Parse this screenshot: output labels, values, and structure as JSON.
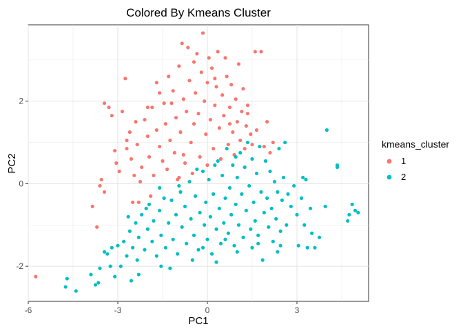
{
  "chart_data": {
    "type": "scatter",
    "title": "Colored By Kmeans Cluster",
    "xlabel": "PC1",
    "ylabel": "PC2",
    "xlim": [
      -6,
      5.4
    ],
    "ylim": [
      -2.85,
      3.85
    ],
    "xticks": [
      -6,
      -3,
      0,
      3
    ],
    "yticks": [
      -2,
      0,
      2
    ],
    "grid": true,
    "legend": {
      "title": "kmeans_cluster",
      "placement": "right",
      "entries": [
        {
          "label": "1",
          "color": "#F8766D"
        },
        {
          "label": "2",
          "color": "#00BFC4"
        }
      ]
    },
    "series": [
      {
        "name": "1",
        "color": "#F8766D",
        "points": [
          [
            -5.75,
            -2.25
          ],
          [
            -3.85,
            -0.55
          ],
          [
            -3.7,
            -1.05
          ],
          [
            -3.6,
            -0.05
          ],
          [
            -3.55,
            0.1
          ],
          [
            -3.45,
            -0.2
          ],
          [
            -3.45,
            1.95
          ],
          [
            -3.3,
            1.85
          ],
          [
            -3.2,
            1.65
          ],
          [
            -3.1,
            0.8
          ],
          [
            -3.05,
            0.5
          ],
          [
            -2.95,
            0.3
          ],
          [
            -2.85,
            1.75
          ],
          [
            -2.75,
            2.55
          ],
          [
            -2.7,
            0.85
          ],
          [
            -2.6,
            1.25
          ],
          [
            -2.55,
            0.6
          ],
          [
            -2.45,
            0.2
          ],
          [
            -2.4,
            1.5
          ],
          [
            -2.35,
            0.95
          ],
          [
            -2.3,
            -0.45
          ],
          [
            -2.2,
            0.4
          ],
          [
            -2.1,
            1.55
          ],
          [
            -2.0,
            1.15
          ],
          [
            -1.95,
            0.65
          ],
          [
            -1.85,
            1.85
          ],
          [
            -1.8,
            0.2
          ],
          [
            -1.7,
            1.3
          ],
          [
            -1.6,
            2.2
          ],
          [
            -1.6,
            0.9
          ],
          [
            -1.5,
            0.55
          ],
          [
            -1.45,
            1.95
          ],
          [
            -1.4,
            1.45
          ],
          [
            -1.35,
            0.35
          ],
          [
            -1.3,
            2.6
          ],
          [
            -1.25,
            1.05
          ],
          [
            -1.15,
            2.25
          ],
          [
            -1.1,
            0.75
          ],
          [
            -1.05,
            1.6
          ],
          [
            -0.95,
            0.15
          ],
          [
            -0.95,
            2.85
          ],
          [
            -0.9,
            1.25
          ],
          [
            -0.85,
            3.4
          ],
          [
            -0.8,
            2.05
          ],
          [
            -0.75,
            0.5
          ],
          [
            -0.7,
            1.75
          ],
          [
            -0.65,
            3.3
          ],
          [
            -0.6,
            2.5
          ],
          [
            -0.55,
            1.0
          ],
          [
            -0.5,
            0.25
          ],
          [
            -0.45,
            1.45
          ],
          [
            -0.4,
            2.2
          ],
          [
            -0.35,
            3.15
          ],
          [
            -0.3,
            1.7
          ],
          [
            -0.25,
            0.65
          ],
          [
            -0.2,
            2.7
          ],
          [
            -0.15,
            3.65
          ],
          [
            -0.1,
            2.0
          ],
          [
            -0.05,
            1.2
          ],
          [
            0.0,
            2.45
          ],
          [
            0.0,
            0.45
          ],
          [
            0.05,
            3.05
          ],
          [
            0.1,
            1.55
          ],
          [
            0.15,
            2.8
          ],
          [
            0.2,
            0.85
          ],
          [
            0.25,
            1.9
          ],
          [
            0.3,
            2.35
          ],
          [
            0.35,
            3.2
          ],
          [
            0.4,
            1.35
          ],
          [
            0.45,
            0.6
          ],
          [
            0.5,
            2.15
          ],
          [
            0.55,
            1.65
          ],
          [
            0.6,
            3.05
          ],
          [
            0.65,
            2.6
          ],
          [
            0.7,
            0.95
          ],
          [
            0.75,
            1.85
          ],
          [
            0.8,
            2.4
          ],
          [
            0.85,
            1.25
          ],
          [
            0.9,
            0.7
          ],
          [
            0.95,
            2.05
          ],
          [
            1.0,
            1.5
          ],
          [
            1.05,
            2.9
          ],
          [
            1.1,
            1.05
          ],
          [
            1.15,
            1.75
          ],
          [
            1.2,
            2.3
          ],
          [
            1.25,
            0.85
          ],
          [
            1.3,
            1.4
          ],
          [
            1.35,
            1.9
          ],
          [
            1.45,
            1.2
          ],
          [
            1.5,
            0.95
          ],
          [
            1.6,
            3.2
          ],
          [
            1.65,
            1.3
          ],
          [
            1.8,
            3.2
          ],
          [
            1.9,
            0.9
          ],
          [
            2.0,
            1.5
          ],
          [
            2.1,
            0.75
          ],
          [
            2.2,
            1.0
          ],
          [
            -1.0,
            0.1
          ],
          [
            -2.5,
            -0.45
          ],
          [
            -1.9,
            -0.3
          ],
          [
            -2.25,
            0.05
          ],
          [
            -0.8,
            0.7
          ],
          [
            -1.2,
            1.95
          ],
          [
            -0.45,
            2.95
          ],
          [
            0.25,
            2.55
          ],
          [
            0.75,
            1.45
          ],
          [
            1.35,
            1.7
          ],
          [
            -1.7,
            2.45
          ],
          [
            -2.0,
            1.85
          ],
          [
            -2.7,
            1.05
          ]
        ]
      },
      {
        "name": "2",
        "color": "#00BFC4",
        "points": [
          [
            -4.75,
            -2.5
          ],
          [
            -4.7,
            -2.3
          ],
          [
            -4.4,
            -2.6
          ],
          [
            -3.9,
            -2.2
          ],
          [
            -3.75,
            -2.45
          ],
          [
            -3.6,
            -2.05
          ],
          [
            -3.45,
            -1.65
          ],
          [
            -3.35,
            -1.7
          ],
          [
            -3.25,
            -2.0
          ],
          [
            -3.1,
            -2.25
          ],
          [
            -3.0,
            -1.5
          ],
          [
            -2.9,
            -2.0
          ],
          [
            -2.8,
            -1.4
          ],
          [
            -2.7,
            -1.75
          ],
          [
            -2.6,
            -1.15
          ],
          [
            -2.55,
            -2.35
          ],
          [
            -2.5,
            -1.55
          ],
          [
            -2.4,
            -0.95
          ],
          [
            -2.35,
            -1.85
          ],
          [
            -2.3,
            -1.3
          ],
          [
            -2.2,
            -0.75
          ],
          [
            -2.1,
            -1.6
          ],
          [
            -2.0,
            -1.1
          ],
          [
            -1.95,
            -0.5
          ],
          [
            -1.85,
            -1.4
          ],
          [
            -1.8,
            -0.9
          ],
          [
            -1.7,
            -1.75
          ],
          [
            -1.6,
            -0.65
          ],
          [
            -1.55,
            -1.25
          ],
          [
            -1.45,
            -0.35
          ],
          [
            -1.4,
            -1.55
          ],
          [
            -1.3,
            -0.95
          ],
          [
            -1.2,
            -0.4
          ],
          [
            -1.15,
            -1.35
          ],
          [
            -1.05,
            -0.75
          ],
          [
            -1.0,
            -1.7
          ],
          [
            -0.9,
            -0.2
          ],
          [
            -0.85,
            -1.05
          ],
          [
            -0.75,
            -0.55
          ],
          [
            -0.7,
            -1.45
          ],
          [
            -0.6,
            0.05
          ],
          [
            -0.55,
            -0.85
          ],
          [
            -0.45,
            -1.25
          ],
          [
            -0.4,
            -0.3
          ],
          [
            -0.3,
            -1.6
          ],
          [
            -0.25,
            -0.7
          ],
          [
            -0.15,
            0.3
          ],
          [
            -0.1,
            -1.0
          ],
          [
            -0.05,
            -0.45
          ],
          [
            0.0,
            -1.35
          ],
          [
            0.05,
            0.1
          ],
          [
            0.1,
            -0.8
          ],
          [
            0.15,
            -1.7
          ],
          [
            0.2,
            -0.25
          ],
          [
            0.3,
            -1.1
          ],
          [
            0.35,
            0.55
          ],
          [
            0.4,
            -0.6
          ],
          [
            0.45,
            -1.45
          ],
          [
            0.5,
            0.2
          ],
          [
            0.55,
            -0.95
          ],
          [
            0.6,
            -0.35
          ],
          [
            0.65,
            0.85
          ],
          [
            0.7,
            -1.2
          ],
          [
            0.75,
            -0.1
          ],
          [
            0.8,
            -0.75
          ],
          [
            0.85,
            0.45
          ],
          [
            0.9,
            -1.5
          ],
          [
            0.95,
            -0.5
          ],
          [
            1.0,
            0.15
          ],
          [
            1.05,
            -1.0
          ],
          [
            1.1,
            0.75
          ],
          [
            1.15,
            -0.25
          ],
          [
            1.2,
            -1.3
          ],
          [
            1.25,
            0.4
          ],
          [
            1.3,
            -0.65
          ],
          [
            1.35,
            1.0
          ],
          [
            1.4,
            -0.05
          ],
          [
            1.45,
            -1.1
          ],
          [
            1.5,
            0.6
          ],
          [
            1.55,
            -0.45
          ],
          [
            1.6,
            -0.9
          ],
          [
            1.65,
            0.25
          ],
          [
            1.7,
            -1.25
          ],
          [
            1.75,
            0.9
          ],
          [
            1.8,
            -0.2
          ],
          [
            1.85,
            -1.85
          ],
          [
            1.9,
            -0.7
          ],
          [
            1.95,
            0.55
          ],
          [
            2.0,
            -0.35
          ],
          [
            2.05,
            -1.05
          ],
          [
            2.1,
            0.3
          ],
          [
            2.15,
            -0.6
          ],
          [
            2.2,
            -1.4
          ],
          [
            2.25,
            0.05
          ],
          [
            2.3,
            -0.85
          ],
          [
            2.35,
            -0.2
          ],
          [
            2.4,
            0.85
          ],
          [
            2.45,
            -1.5
          ],
          [
            2.5,
            -0.4
          ],
          [
            2.55,
            0.15
          ],
          [
            2.65,
            -1.0
          ],
          [
            2.7,
            -0.25
          ],
          [
            2.8,
            -0.55
          ],
          [
            2.9,
            -0.05
          ],
          [
            3.0,
            -0.75
          ],
          [
            3.05,
            -1.5
          ],
          [
            3.15,
            -0.35
          ],
          [
            3.25,
            -1.0
          ],
          [
            3.3,
            0.1
          ],
          [
            3.45,
            -0.6
          ],
          [
            3.5,
            -1.2
          ],
          [
            3.6,
            -1.55
          ],
          [
            3.2,
            0.15
          ],
          [
            2.6,
            1.0
          ],
          [
            1.5,
            -1.55
          ],
          [
            4.0,
            1.3
          ],
          [
            4.35,
            0.45
          ],
          [
            4.35,
            0.4
          ],
          [
            3.95,
            -0.55
          ],
          [
            4.7,
            -0.9
          ],
          [
            4.75,
            -0.75
          ],
          [
            4.85,
            -0.5
          ],
          [
            4.95,
            -0.65
          ],
          [
            5.05,
            -0.7
          ],
          [
            3.35,
            -1.55
          ],
          [
            3.75,
            -1.3
          ],
          [
            2.35,
            -1.65
          ],
          [
            -0.35,
            0.35
          ],
          [
            0.25,
            0.45
          ],
          [
            0.95,
            0.65
          ],
          [
            -0.95,
            -0.05
          ],
          [
            -1.6,
            -0.1
          ],
          [
            -2.05,
            -0.6
          ],
          [
            -2.65,
            -0.8
          ],
          [
            -3.2,
            -1.55
          ],
          [
            -1.25,
            -2.05
          ],
          [
            -0.5,
            -1.85
          ],
          [
            0.3,
            -1.9
          ],
          [
            1.0,
            -1.65
          ],
          [
            1.7,
            -1.45
          ],
          [
            2.45,
            -1.15
          ],
          [
            -0.15,
            -1.55
          ],
          [
            0.6,
            -1.35
          ],
          [
            -1.55,
            -2.0
          ],
          [
            -2.3,
            -2.2
          ],
          [
            -3.65,
            -2.4
          ]
        ]
      }
    ]
  }
}
